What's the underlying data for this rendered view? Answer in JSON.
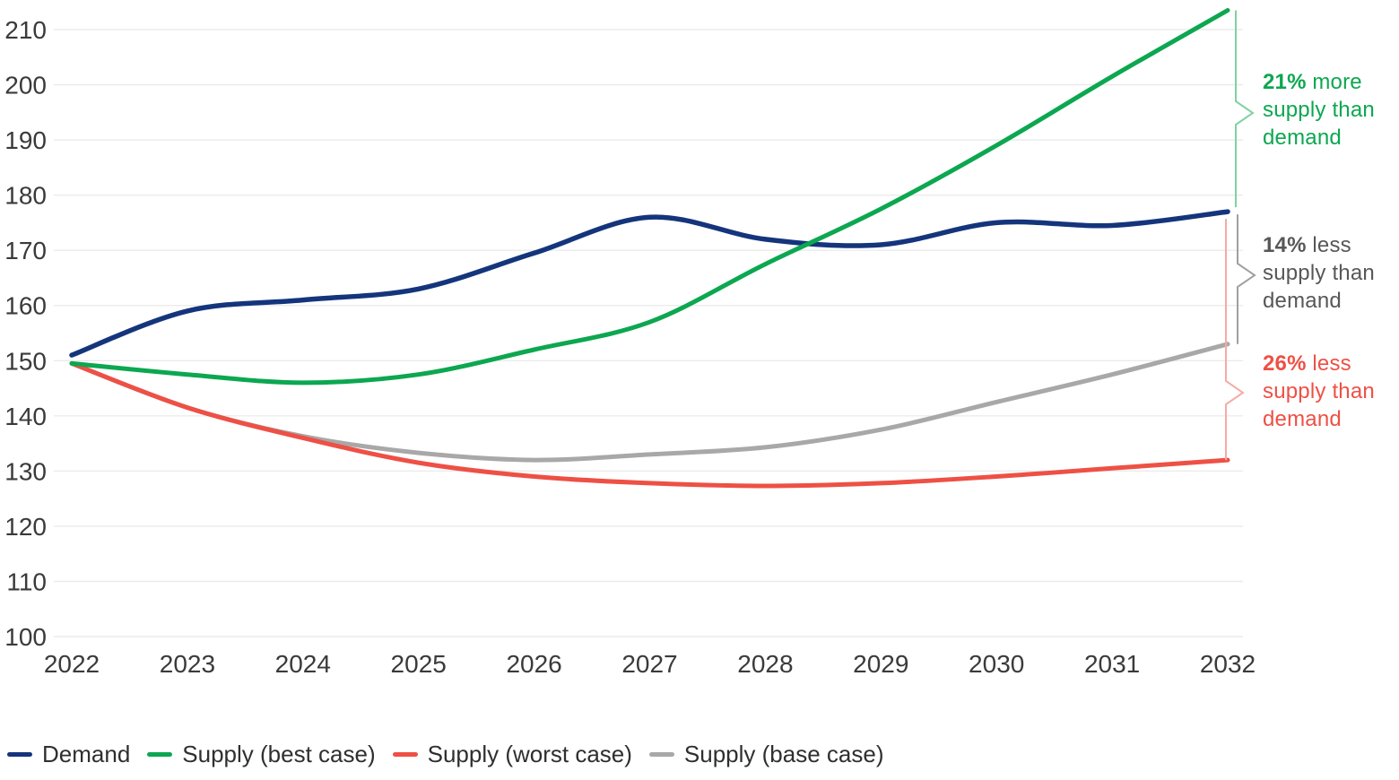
{
  "chart_data": {
    "type": "line",
    "title": "",
    "xlabel": "",
    "ylabel": "",
    "x": [
      2022,
      2023,
      2024,
      2025,
      2026,
      2027,
      2028,
      2029,
      2030,
      2031,
      2032
    ],
    "ylim": [
      100,
      210
    ],
    "ytick_step": 10,
    "yticks": [
      100,
      110,
      120,
      130,
      140,
      150,
      160,
      170,
      180,
      190,
      200,
      210
    ],
    "grid": "horizontal",
    "legend_position": "bottom",
    "series": [
      {
        "name": "Demand",
        "color": "#14357c",
        "values": [
          151,
          159,
          161,
          163,
          169.5,
          176,
          172,
          171,
          175,
          174.5,
          177
        ]
      },
      {
        "name": "Supply (best case)",
        "color": "#0ca750",
        "values": [
          149.5,
          147.5,
          146,
          147.5,
          152,
          157,
          167.5,
          177.5,
          189,
          201.5,
          213.5
        ]
      },
      {
        "name": "Supply (worst case)",
        "color": "#ee5045",
        "values": [
          149.5,
          141.5,
          136,
          131.5,
          129,
          127.8,
          127.3,
          127.8,
          129,
          130.5,
          132
        ]
      },
      {
        "name": "Supply (base case)",
        "color": "#a8a8a8",
        "values": [
          149.5,
          141.5,
          136.3,
          133.3,
          132,
          133,
          134.3,
          137.5,
          142.5,
          147.5,
          153
        ]
      }
    ],
    "annotations": [
      {
        "pct": "21%",
        "text": "more supply than demand",
        "color": "#0ca750",
        "brace_color": "#7fd1a1",
        "compares": "Supply (best case) vs Demand"
      },
      {
        "pct": "14%",
        "text": "less supply than demand",
        "color": "#575757",
        "brace_color": "#9f9f9f",
        "compares": "Supply (base case) vs Demand"
      },
      {
        "pct": "26%",
        "text": "less supply than demand",
        "color": "#ee5045",
        "brace_color": "#f6aba5",
        "compares": "Supply (worst case) vs Demand"
      }
    ],
    "axis_text_color": "#3a3a3a",
    "gridline_color": "#ebebeb"
  }
}
